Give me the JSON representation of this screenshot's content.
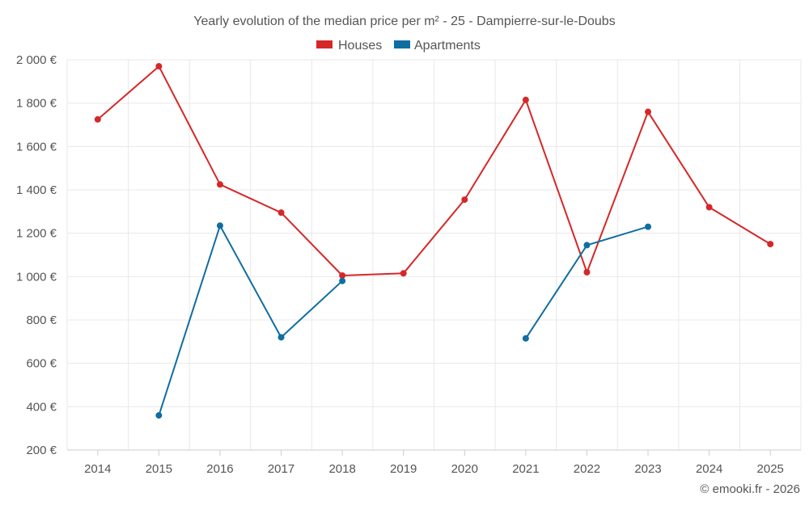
{
  "chart_data": {
    "type": "line",
    "title": "Yearly evolution of the median price per m² - 25 - Dampierre-sur-le-Doubs",
    "xlabel": "",
    "ylabel": "",
    "categories": [
      "2014",
      "2015",
      "2016",
      "2017",
      "2018",
      "2019",
      "2020",
      "2021",
      "2022",
      "2023",
      "2024",
      "2025"
    ],
    "ylim": [
      200,
      2000
    ],
    "yticks": [
      200,
      400,
      600,
      800,
      1000,
      1200,
      1400,
      1600,
      1800,
      2000
    ],
    "ytick_labels": [
      "200 €",
      "400 €",
      "600 €",
      "800 €",
      "1 000 €",
      "1 200 €",
      "1 400 €",
      "1 600 €",
      "1 800 €",
      "2 000 €"
    ],
    "grid": true,
    "legend_position": "top-center",
    "series": [
      {
        "name": "Houses",
        "color": "#d62728",
        "values": [
          1725,
          1970,
          1425,
          1295,
          1005,
          1015,
          1355,
          1815,
          1020,
          1760,
          1320,
          1150
        ]
      },
      {
        "name": "Apartments",
        "color": "#0f6ea0",
        "values": [
          null,
          360,
          1235,
          720,
          980,
          null,
          null,
          715,
          1145,
          1230,
          null,
          null
        ]
      }
    ]
  },
  "credit": "© emooki.fr - 2026"
}
